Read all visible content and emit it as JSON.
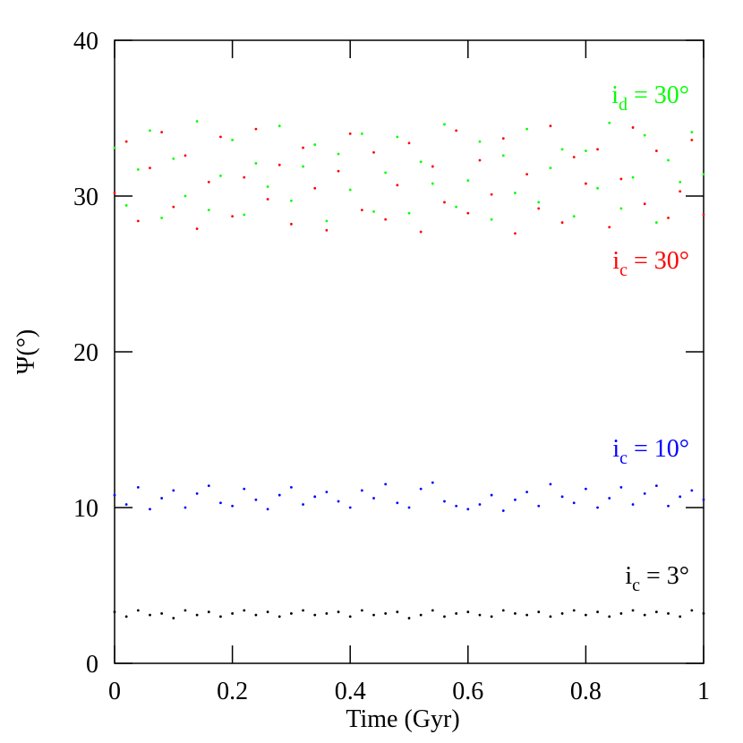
{
  "chart_data": {
    "type": "scatter",
    "xlabel": "Time (Gyr)",
    "ylabel": "Ψ(°)",
    "xlim": [
      0,
      1
    ],
    "xticks": [
      0,
      0.2,
      0.4,
      0.6,
      0.8,
      1
    ],
    "ylim": [
      0,
      40
    ],
    "yticks": [
      0,
      10,
      20,
      30,
      40
    ],
    "x": [
      0,
      0.02,
      0.04,
      0.06,
      0.08,
      0.1,
      0.12,
      0.14,
      0.16,
      0.18,
      0.2,
      0.22,
      0.24,
      0.26,
      0.28,
      0.3,
      0.32,
      0.34,
      0.36,
      0.38,
      0.4,
      0.42,
      0.44,
      0.46,
      0.48,
      0.5,
      0.52,
      0.54,
      0.56,
      0.58,
      0.6,
      0.62,
      0.64,
      0.66,
      0.68,
      0.7,
      0.72,
      0.74,
      0.76,
      0.78,
      0.8,
      0.82,
      0.84,
      0.86,
      0.88,
      0.9,
      0.92,
      0.94,
      0.96,
      0.98,
      1
    ],
    "series": [
      {
        "color": "#000000",
        "values": [
          3.3,
          3.0,
          3.4,
          3.1,
          3.2,
          2.9,
          3.4,
          3.1,
          3.3,
          3.0,
          3.2,
          3.4,
          3.1,
          3.3,
          3.0,
          3.2,
          3.4,
          3.1,
          3.2,
          3.3,
          3.0,
          3.4,
          3.1,
          3.2,
          3.3,
          2.9,
          3.1,
          3.4,
          3.0,
          3.2,
          3.3,
          3.1,
          3.0,
          3.4,
          3.2,
          3.1,
          3.3,
          3.0,
          3.2,
          3.4,
          3.1,
          3.3,
          3.0,
          3.2,
          3.4,
          3.1,
          3.3,
          3.2,
          3.0,
          3.4,
          3.2
        ]
      },
      {
        "color": "#0000ff",
        "values": [
          10.8,
          10.2,
          11.3,
          9.9,
          10.6,
          11.1,
          10.0,
          10.9,
          11.4,
          10.3,
          10.1,
          11.2,
          10.5,
          9.9,
          10.8,
          11.3,
          10.2,
          10.7,
          11.0,
          10.4,
          10.0,
          11.1,
          10.6,
          11.5,
          10.3,
          10.0,
          11.2,
          11.6,
          10.4,
          10.1,
          9.9,
          10.2,
          10.8,
          9.8,
          10.5,
          11.0,
          10.1,
          11.5,
          10.7,
          10.3,
          11.2,
          10.0,
          10.6,
          11.3,
          10.2,
          10.9,
          11.4,
          10.1,
          10.7,
          11.1,
          10.5
        ]
      },
      {
        "color": "#ff0000",
        "values": [
          30.2,
          33.5,
          28.4,
          31.8,
          34.1,
          29.3,
          32.6,
          27.9,
          30.9,
          33.8,
          28.7,
          31.2,
          34.3,
          29.8,
          32.0,
          28.2,
          33.1,
          30.5,
          27.8,
          31.6,
          34.0,
          29.1,
          32.8,
          28.5,
          30.7,
          33.4,
          27.7,
          31.9,
          29.6,
          34.2,
          28.9,
          32.3,
          30.1,
          33.7,
          27.6,
          31.4,
          29.2,
          34.5,
          28.3,
          32.5,
          30.8,
          33.0,
          28.0,
          31.1,
          34.4,
          29.5,
          32.9,
          28.6,
          30.3,
          33.6,
          28.8
        ]
      },
      {
        "color": "#00ff00",
        "values": [
          33.1,
          29.4,
          31.7,
          34.2,
          28.6,
          32.4,
          30.0,
          34.8,
          29.1,
          31.3,
          33.6,
          28.8,
          32.1,
          30.6,
          34.5,
          29.7,
          31.9,
          33.3,
          28.4,
          32.7,
          30.4,
          34.0,
          29.0,
          31.5,
          33.8,
          28.9,
          32.2,
          30.8,
          34.6,
          29.3,
          31.0,
          33.5,
          28.5,
          32.6,
          30.2,
          34.3,
          29.6,
          31.8,
          33.0,
          28.7,
          32.9,
          30.5,
          34.7,
          29.2,
          31.2,
          33.9,
          28.3,
          32.3,
          30.9,
          34.1,
          31.4
        ]
      }
    ],
    "annotations": [
      {
        "text": "i",
        "sub": "d",
        "rest": " = 30°",
        "color": "#00ff00"
      },
      {
        "text": "i",
        "sub": "c",
        "rest": " = 30°",
        "color": "#ff0000"
      },
      {
        "text": "i",
        "sub": "c",
        "rest": " = 10°",
        "color": "#0000ff"
      },
      {
        "text": "i",
        "sub": "c",
        "rest": " = 3°",
        "color": "#000000"
      }
    ]
  }
}
